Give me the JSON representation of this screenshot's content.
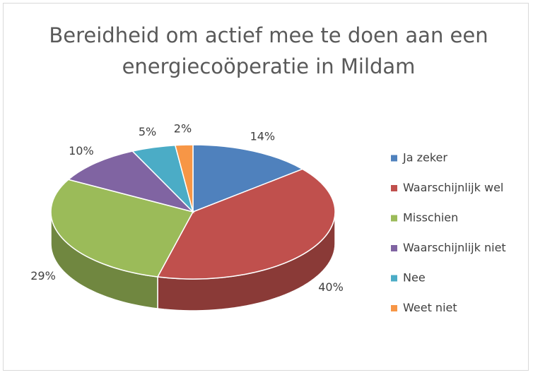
{
  "chart_data": {
    "type": "pie3d",
    "title": "Bereidheid om actief mee te doen aan een energiecoöperatie in Mildam",
    "categories": [
      "Ja zeker",
      "Waarschijnlijk wel",
      "Misschien",
      "Waarschijnlijk niet",
      "Nee",
      "Weet niet"
    ],
    "values": [
      14,
      40,
      29,
      10,
      5,
      2
    ],
    "value_labels": [
      "14%",
      "40%",
      "29%",
      "10%",
      "5%",
      "2%"
    ],
    "colors": [
      "#4f81bd",
      "#c0504d",
      "#9bbb59",
      "#8064a2",
      "#4bacc6",
      "#f79646"
    ],
    "legend": "right"
  }
}
